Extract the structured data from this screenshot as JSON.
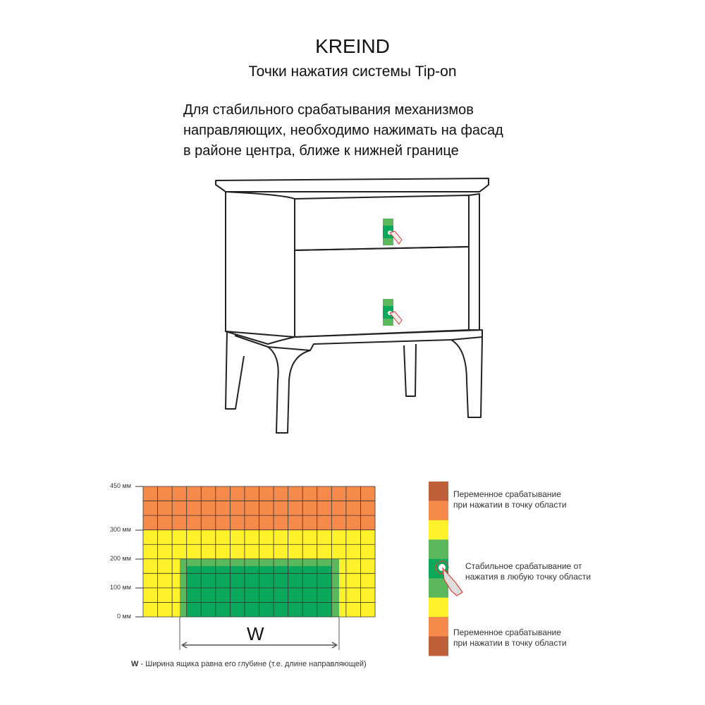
{
  "header": {
    "brand": "KREIND",
    "subtitle": "Точки нажатия системы Tip-on"
  },
  "description": {
    "lines": [
      "Для стабильного срабатывания механизмов",
      "направляющих, необходимо нажимать на фасад",
      "в районе центра, ближе к нижней границе"
    ]
  },
  "diagram": {
    "ticks": [
      "450 мм",
      "300 мм",
      "200 мм",
      "100 мм",
      "0 мм"
    ],
    "width_symbol": "W",
    "footnote_symbol": "W",
    "footnote_text": " - Ширина ящика равна его глубине (т.е. длине направляющей)"
  },
  "legend": {
    "variable_top": [
      "Переменное срабатывание",
      "при нажатии в точку области"
    ],
    "stable": [
      "Стабильное срабатывание от",
      "нажатия в любую точку области"
    ],
    "variable_bottom": [
      "Переменное срабатывание",
      "при нажатии в точку области"
    ]
  },
  "colors": {
    "orange": "#f58a4b",
    "yellow": "#fff22a",
    "light_green": "#5cb85c",
    "dark_green": "#0aa85a",
    "brown": "#c0603a",
    "hand": "#e0403a"
  }
}
